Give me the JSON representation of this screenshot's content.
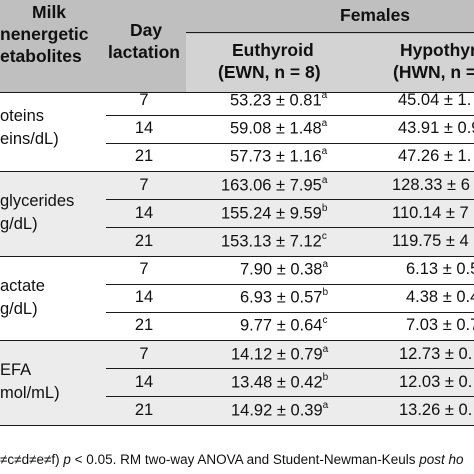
{
  "header": {
    "col1_line1": "Milk",
    "col1_line2": "nenergetic",
    "col1_line3": "etabolites",
    "col2_line1": "Day",
    "col2_line2": "lactation",
    "group": "Females",
    "euthyroid_line1": "Euthyroid",
    "euthyroid_line2": "(EWN, n = 8)",
    "hypo_line1": "Hypothyro",
    "hypo_line2": "(HWN, n ="
  },
  "groups": [
    {
      "label_line1": "oteins",
      "label_line2": "eins/dL)",
      "rows": [
        {
          "day": "7",
          "ewn": "53.23 ± 0.81",
          "ewn_sup": "a",
          "hwn": "45.04 ± 1."
        },
        {
          "day": "14",
          "ewn": "59.08 ± 1.48",
          "ewn_sup": "a",
          "hwn": "43.91 ± 0.9"
        },
        {
          "day": "21",
          "ewn": "57.73 ± 1.16",
          "ewn_sup": "a",
          "hwn": "47.26 ± 1."
        }
      ]
    },
    {
      "label_line1": "glycerides",
      "label_line2": "g/dL)",
      "rows": [
        {
          "day": "7",
          "ewn": "163.06 ± 7.95",
          "ewn_sup": "a",
          "hwn": "128.33 ± 6"
        },
        {
          "day": "14",
          "ewn": "155.24 ± 9.59",
          "ewn_sup": "b",
          "hwn": "110.14 ± 7"
        },
        {
          "day": "21",
          "ewn": "153.13 ± 7.12",
          "ewn_sup": "c",
          "hwn": "119.75 ± 4"
        }
      ]
    },
    {
      "label_line1": "actate",
      "label_line2": "g/dL)",
      "rows": [
        {
          "day": "7",
          "ewn": "7.90 ± 0.38",
          "ewn_sup": "a",
          "hwn": "6.13 ± 0.5"
        },
        {
          "day": "14",
          "ewn": "6.93 ± 0.57",
          "ewn_sup": "b",
          "hwn": "4.38 ± 0.4"
        },
        {
          "day": "21",
          "ewn": "9.77 ± 0.64",
          "ewn_sup": "c",
          "hwn": "7.03 ± 0.7"
        }
      ]
    },
    {
      "label_line1": "EFA",
      "label_line2": "mol/mL)",
      "rows": [
        {
          "day": "7",
          "ewn": "14.12 ± 0.79",
          "ewn_sup": "a",
          "hwn": "12.73 ± 0."
        },
        {
          "day": "14",
          "ewn": "13.48 ± 0.42",
          "ewn_sup": "b",
          "hwn": "12.03 ± 0."
        },
        {
          "day": "21",
          "ewn": "14.92 ± 0.39",
          "ewn_sup": "a",
          "hwn": "13.26 ± 0."
        }
      ]
    }
  ],
  "footnote": {
    "prefix": "≠c≠d≠e≠f) ",
    "p": "p",
    "middle": " < 0.05. RM two-way ANOVA and Student-Newman-Keuls ",
    "posthoc": "post ho"
  }
}
